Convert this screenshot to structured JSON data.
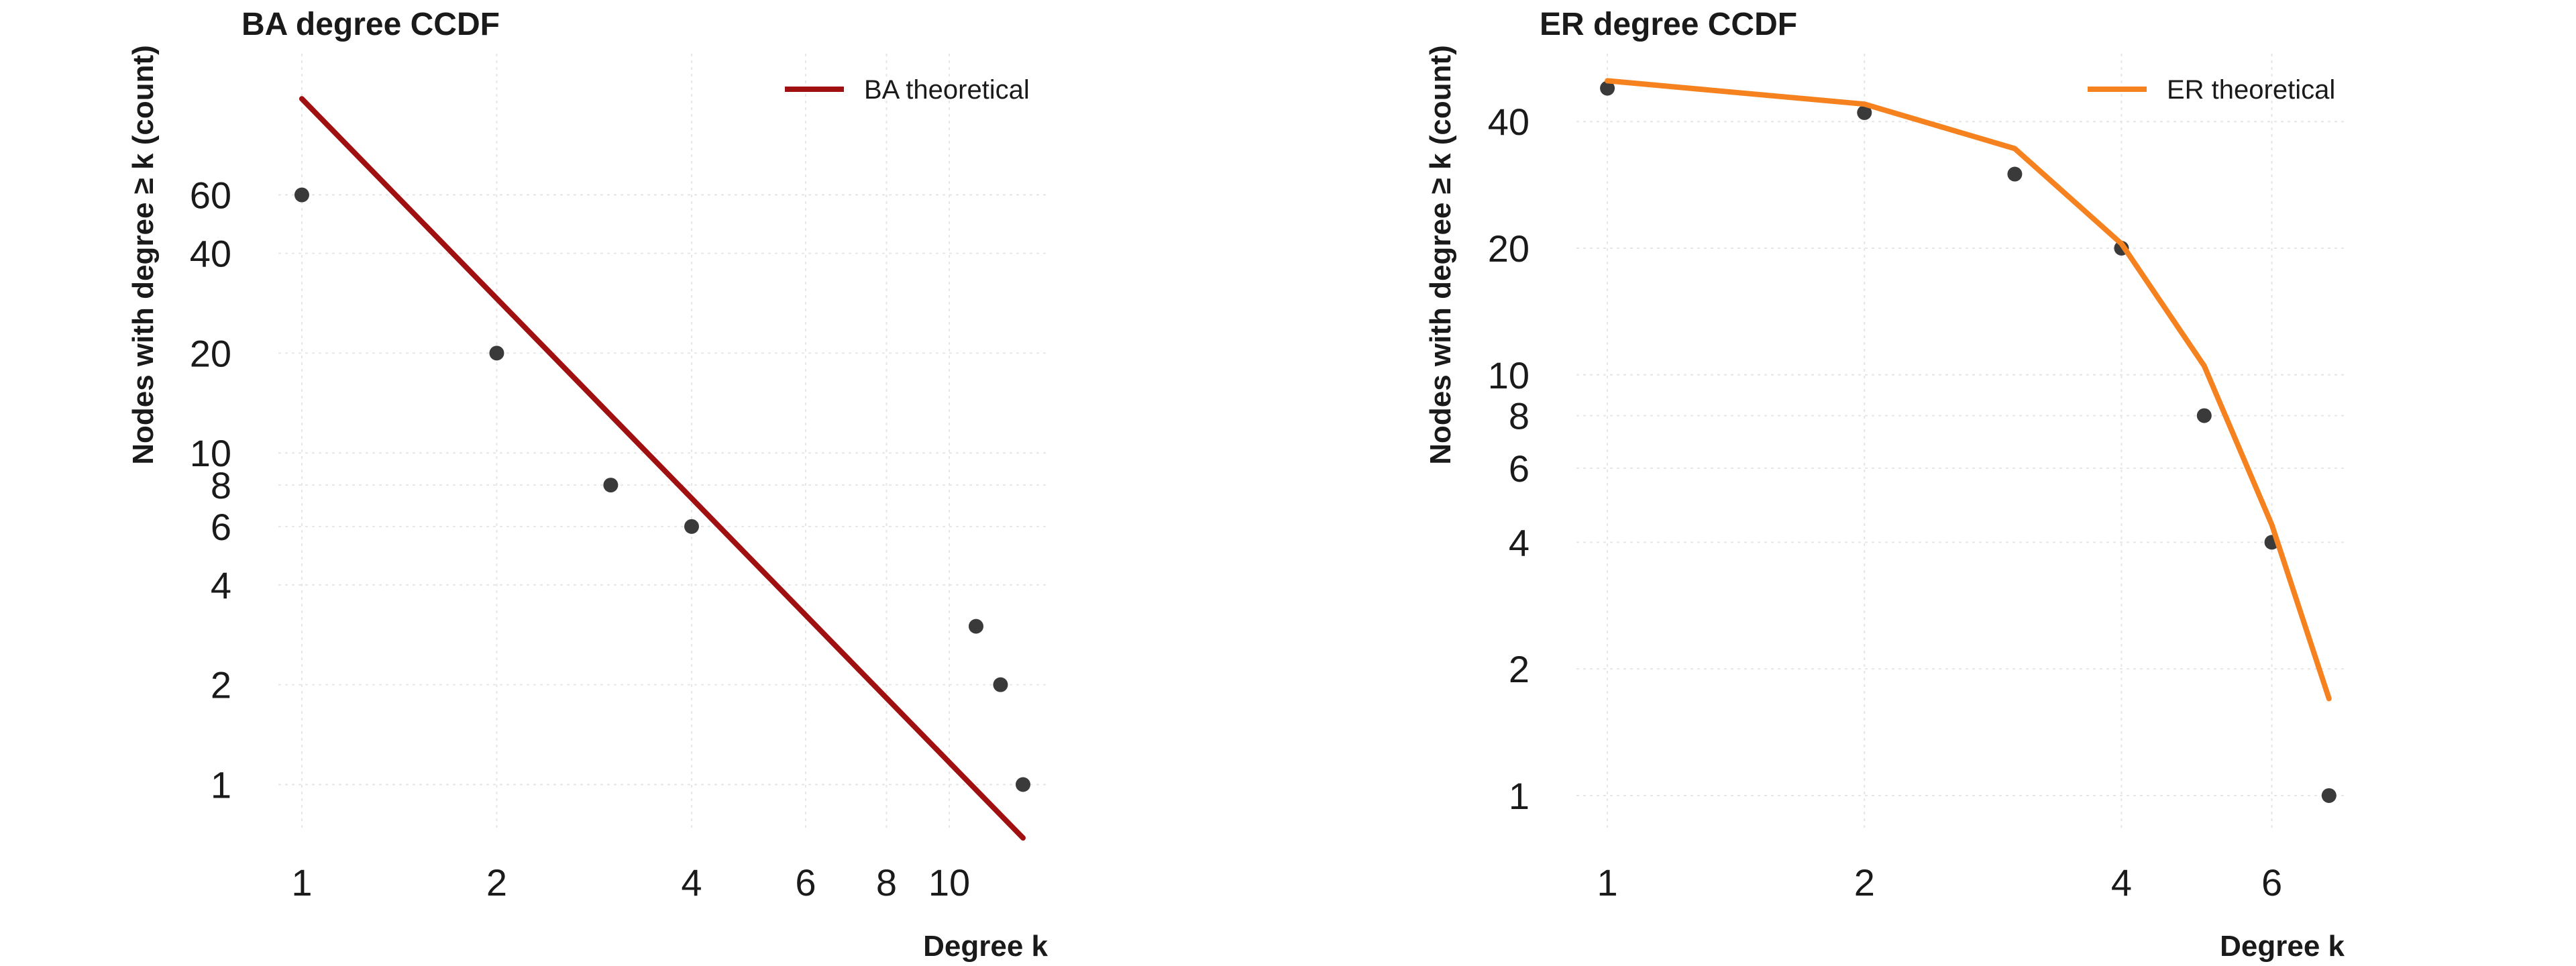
{
  "chart_data": [
    {
      "type": "scatter",
      "title": "BA degree CCDF",
      "xlabel": "Degree k",
      "ylabel": "Nodes with degree ≥ k (count)",
      "x_scale": "log",
      "y_scale": "log",
      "xlim": [
        0.92,
        14.2
      ],
      "ylim": [
        0.72,
        160
      ],
      "xticks": [
        1,
        2,
        4,
        6,
        8,
        10
      ],
      "yticks": [
        1,
        2,
        4,
        6,
        8,
        10,
        20,
        40,
        60
      ],
      "grid": true,
      "legend_position": "top-right",
      "series": [
        {
          "kind": "scatter",
          "color": "#3a3a3a",
          "points": [
            {
              "x": 1,
              "y": 60
            },
            {
              "x": 2,
              "y": 20
            },
            {
              "x": 3,
              "y": 8
            },
            {
              "x": 4,
              "y": 6
            },
            {
              "x": 11,
              "y": 3
            },
            {
              "x": 12,
              "y": 2
            },
            {
              "x": 13,
              "y": 1
            }
          ]
        },
        {
          "kind": "line",
          "name": "BA theoretical",
          "color": "#a01010",
          "points": [
            {
              "x": 1,
              "y": 117
            },
            {
              "x": 13,
              "y": 0.69
            }
          ]
        }
      ]
    },
    {
      "type": "scatter",
      "title": "ER degree CCDF",
      "xlabel": "Degree k",
      "ylabel": "Nodes with degree ≥ k (count)",
      "x_scale": "log",
      "y_scale": "log",
      "xlim": [
        0.92,
        7.3
      ],
      "ylim": [
        0.82,
        58
      ],
      "xticks": [
        1,
        2,
        4,
        6
      ],
      "yticks": [
        1,
        2,
        4,
        6,
        8,
        10,
        20,
        40
      ],
      "grid": true,
      "legend_position": "top-right",
      "series": [
        {
          "kind": "scatter",
          "color": "#3a3a3a",
          "points": [
            {
              "x": 1,
              "y": 48
            },
            {
              "x": 2,
              "y": 42
            },
            {
              "x": 3,
              "y": 30
            },
            {
              "x": 4,
              "y": 20
            },
            {
              "x": 5,
              "y": 8
            },
            {
              "x": 6,
              "y": 4
            },
            {
              "x": 7,
              "y": 1
            }
          ]
        },
        {
          "kind": "line",
          "name": "ER theoretical",
          "color": "#f5821f",
          "points": [
            {
              "x": 1,
              "y": 50
            },
            {
              "x": 2,
              "y": 44
            },
            {
              "x": 3,
              "y": 34.5
            },
            {
              "x": 4,
              "y": 20.5
            },
            {
              "x": 5,
              "y": 10.5
            },
            {
              "x": 6,
              "y": 4.4
            },
            {
              "x": 7,
              "y": 1.7
            }
          ]
        }
      ]
    }
  ]
}
